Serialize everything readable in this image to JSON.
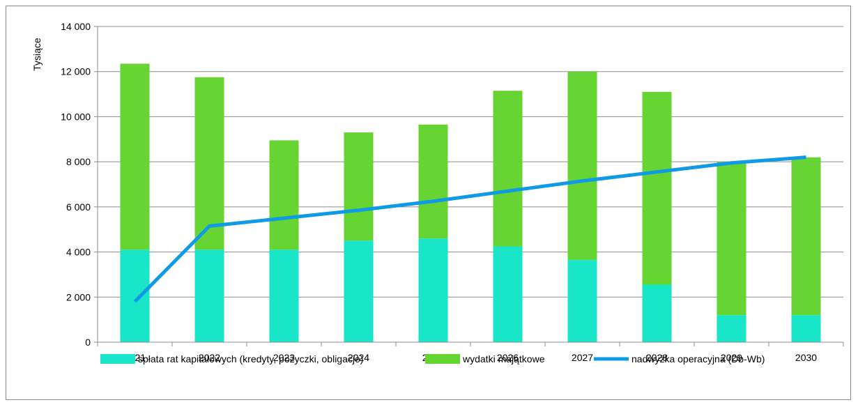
{
  "chart_data": {
    "type": "bar",
    "stacked": true,
    "ylabel": "Tysiące",
    "ylim": [
      0,
      14000
    ],
    "yticks": [
      0,
      2000,
      4000,
      6000,
      8000,
      10000,
      12000,
      14000
    ],
    "ytick_labels": [
      "0",
      "2 000",
      "4 000",
      "6 000",
      "8 000",
      "10 000",
      "12 000",
      "14 000"
    ],
    "grid": true,
    "legend_position": "bottom",
    "categories": [
      "2021",
      "2022",
      "2023",
      "2024",
      "2025",
      "2026",
      "2027",
      "2028",
      "2029",
      "2030"
    ],
    "series": [
      {
        "name": "spłata rat kapitałowych (kredyty, pożyczki, obligacje)",
        "kind": "bar",
        "color": "#19e6c8",
        "values": [
          4100,
          4100,
          4100,
          4500,
          4600,
          4250,
          3650,
          2550,
          1200,
          1200
        ]
      },
      {
        "name": "wydatki majątkowe",
        "kind": "bar",
        "color": "#66d433",
        "values": [
          8250,
          7650,
          4850,
          4800,
          5050,
          6900,
          8350,
          8550,
          6800,
          7000
        ]
      },
      {
        "name": "nadwyżka operacyjna (Db-Wb)",
        "kind": "line",
        "color": "#0f9ae6",
        "values": [
          1800,
          5150,
          5500,
          5850,
          6250,
          6700,
          7150,
          7550,
          7950,
          8200
        ]
      }
    ]
  }
}
